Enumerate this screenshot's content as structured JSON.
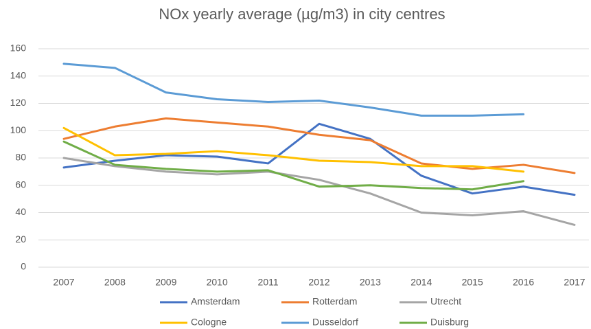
{
  "chart_data": {
    "type": "line",
    "title": "NOx yearly average (µg/m3) in city centres",
    "categories": [
      "2007",
      "2008",
      "2009",
      "2010",
      "2011",
      "2012",
      "2013",
      "2014",
      "2015",
      "2016",
      "2017"
    ],
    "series": [
      {
        "name": "Amsterdam",
        "color": "#4472c4",
        "values": [
          73,
          78,
          82,
          81,
          76,
          105,
          94,
          67,
          54,
          59,
          53
        ]
      },
      {
        "name": "Rotterdam",
        "color": "#ed7d31",
        "values": [
          94,
          103,
          109,
          106,
          103,
          97,
          93,
          76,
          72,
          75,
          69
        ]
      },
      {
        "name": "Utrecht",
        "color": "#a5a5a5",
        "values": [
          80,
          74,
          70,
          68,
          70,
          64,
          54,
          40,
          38,
          41,
          31
        ]
      },
      {
        "name": "Cologne",
        "color": "#ffc000",
        "values": [
          102,
          82,
          83,
          85,
          82,
          78,
          77,
          74,
          74,
          70,
          null
        ]
      },
      {
        "name": "Dusseldorf",
        "color": "#5b9bd5",
        "values": [
          149,
          146,
          128,
          123,
          121,
          122,
          117,
          111,
          111,
          112,
          null
        ]
      },
      {
        "name": "Duisburg",
        "color": "#70ad47",
        "values": [
          92,
          75,
          72,
          70,
          71,
          59,
          60,
          58,
          57,
          63,
          null
        ]
      }
    ],
    "ylim": [
      0,
      160
    ],
    "yticks": [
      0,
      20,
      40,
      60,
      80,
      100,
      120,
      140,
      160
    ],
    "grid": true,
    "legend": "bottom"
  }
}
